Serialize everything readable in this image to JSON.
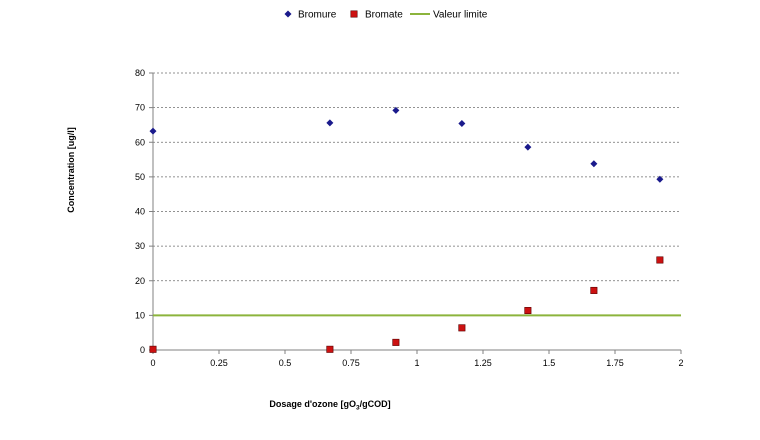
{
  "chart_data": {
    "type": "scatter",
    "xlabel": "Dosage d'ozone [gO",
    "xlabel_sub": "3",
    "xlabel_end": "/gCOD]",
    "ylabel": "Concentration [ug/l]",
    "xlim": [
      0,
      2
    ],
    "ylim": [
      0,
      80
    ],
    "x_ticks": [
      0,
      0.25,
      0.5,
      0.75,
      1,
      1.25,
      1.5,
      1.75,
      2
    ],
    "x_tick_labels": [
      "0",
      "0.25",
      "0.5",
      "0.75",
      "1",
      "1.25",
      "1.5",
      "1.75",
      "2"
    ],
    "y_ticks": [
      0,
      10,
      20,
      30,
      40,
      50,
      60,
      70,
      80
    ],
    "y_tick_labels": [
      "0",
      "10",
      "20",
      "30",
      "40",
      "50",
      "60",
      "70",
      "80"
    ],
    "grid": "horizontal dashed",
    "legend_position": "top-center",
    "series": [
      {
        "name": "Bromure",
        "marker": "diamond",
        "color": "#1a1a8c",
        "x": [
          0,
          0.67,
          0.92,
          1.17,
          1.42,
          1.67,
          1.92
        ],
        "y": [
          63.2,
          65.6,
          69.2,
          65.4,
          58.6,
          53.8,
          49.3
        ]
      },
      {
        "name": "Bromate",
        "marker": "square",
        "color": "#cc1111",
        "x": [
          0,
          0.67,
          0.92,
          1.17,
          1.42,
          1.67,
          1.92
        ],
        "y": [
          0.2,
          0.2,
          2.2,
          6.4,
          11.4,
          17.2,
          26.0
        ]
      },
      {
        "name": "Valeur limite",
        "marker": "line",
        "color": "#8cb43c",
        "x": [
          0,
          2
        ],
        "y": [
          10,
          10
        ]
      }
    ]
  }
}
